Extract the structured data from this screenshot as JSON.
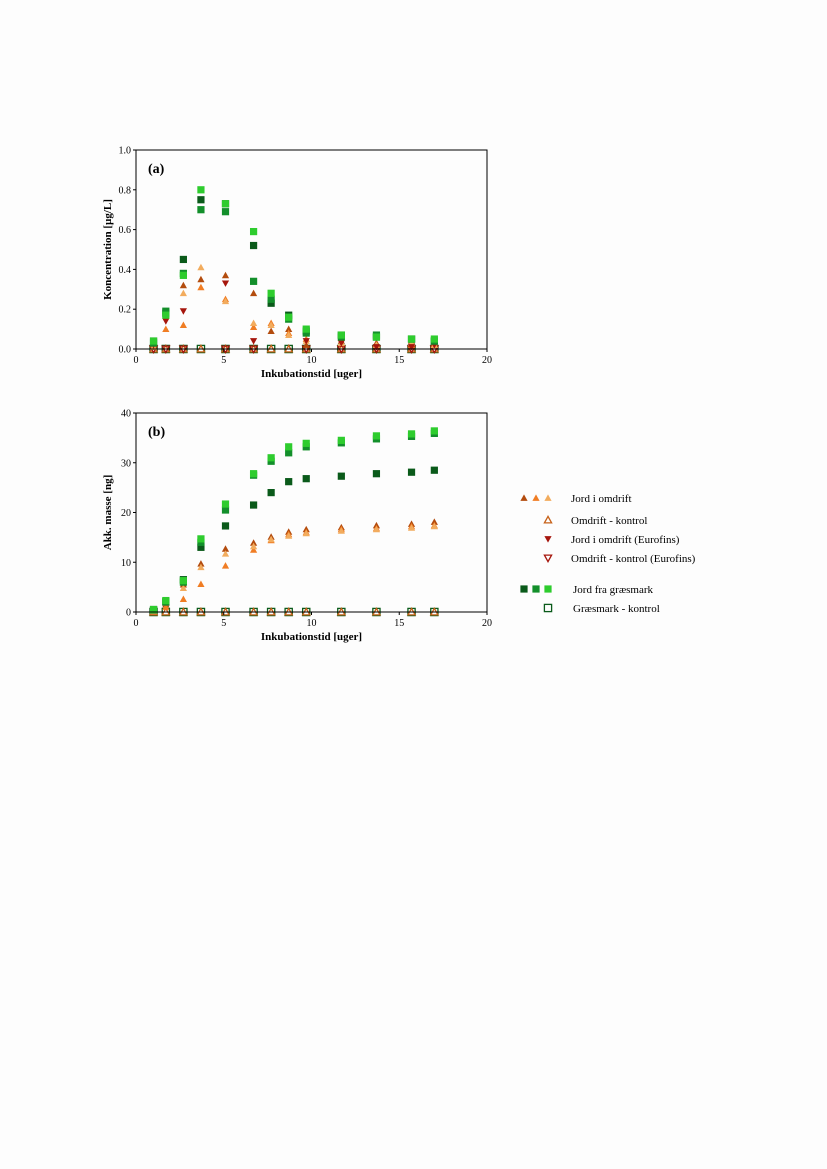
{
  "colors": {
    "tri1": "#b34c0e",
    "tri2": "#f07d24",
    "tri3": "#f2ac5e",
    "ctrl_tri": "#c7621a",
    "eurofins": "#a6160d",
    "sq1": "#0a5a1a",
    "sq2": "#138f2b",
    "sq3": "#2ecc2e",
    "ctrl_sq": "#0a5a1a"
  },
  "legend": {
    "items": [
      {
        "key": "tri",
        "label": "Jord i omdrift"
      },
      {
        "key": "ctrl_tri",
        "label": "Omdrift - kontrol"
      },
      {
        "key": "eurofins",
        "label": "Jord i omdrift (Eurofins)"
      },
      {
        "key": "eurofins_ctrl",
        "label": "Omdrift - kontrol (Eurofins)"
      },
      {
        "key": "sq",
        "label": "Jord fra græsmark"
      },
      {
        "key": "ctrl_sq",
        "label": "Græsmark - kontrol"
      }
    ]
  },
  "chart_data": [
    {
      "type": "scatter",
      "panel_label": "(a)",
      "xlabel": "Inkubationstid [uger]",
      "ylabel": "Koncentration [µg/L]",
      "xlim": [
        0,
        20
      ],
      "ylim": [
        0,
        1.0
      ],
      "xticks": [
        "0",
        "5",
        "10",
        "15",
        "20"
      ],
      "yticks": [
        "0.0",
        "0.2",
        "0.4",
        "0.6",
        "0.8",
        "1.0"
      ],
      "x": [
        1,
        1.7,
        2.7,
        3.7,
        5.1,
        6.7,
        7.7,
        8.7,
        9.7,
        11.7,
        13.7,
        15.7,
        17
      ],
      "series": [
        {
          "group": "tri",
          "name": "Jord i omdrift",
          "values": [
            0.02,
            0.18,
            0.32,
            0.35,
            0.37,
            0.28,
            0.09,
            0.1,
            0.02,
            0.04,
            0.03,
            0.04,
            0.03
          ]
        },
        {
          "group": "tri",
          "name": "Jord i omdrift",
          "values": [
            0.01,
            0.1,
            0.12,
            0.31,
            0.25,
            0.11,
            0.13,
            0.08,
            0.05,
            0.03,
            0.02,
            0.02,
            0.02
          ]
        },
        {
          "group": "tri",
          "name": "Jord i omdrift",
          "values": [
            0.01,
            0.17,
            0.28,
            0.41,
            0.24,
            0.13,
            0.12,
            0.07,
            0.04,
            0.03,
            0.02,
            0.03,
            0.02
          ]
        },
        {
          "group": "ctrl_tri",
          "name": "Omdrift - kontrol",
          "values": [
            0,
            0,
            0,
            0,
            0,
            0,
            0,
            0,
            0,
            0,
            0,
            0,
            0
          ]
        },
        {
          "group": "eurofins",
          "name": "Jord i omdrift (Eurofins)",
          "values": [
            0.02,
            0.14,
            0.19,
            null,
            0.33,
            0.04,
            null,
            null,
            0.04,
            0.03,
            0.01,
            0.01,
            0.02
          ]
        },
        {
          "group": "eurofins_ctrl",
          "name": "Omdrift - kontrol (Eurofins)",
          "values": [
            0,
            0,
            0,
            null,
            0,
            0,
            null,
            null,
            0,
            0,
            0,
            0,
            0
          ]
        },
        {
          "group": "sq",
          "name": "Jord fra græsmark",
          "values": [
            0.04,
            0.18,
            0.45,
            0.75,
            0.73,
            0.52,
            0.23,
            0.17,
            0.09,
            0.07,
            0.06,
            0.05,
            0.04
          ]
        },
        {
          "group": "sq",
          "name": "Jord fra græsmark",
          "values": [
            0.03,
            0.19,
            0.38,
            0.7,
            0.69,
            0.34,
            0.25,
            0.15,
            0.08,
            0.06,
            0.07,
            0.05,
            0.04
          ]
        },
        {
          "group": "sq",
          "name": "Jord fra græsmark",
          "values": [
            0.04,
            0.17,
            0.37,
            0.8,
            0.73,
            0.59,
            0.28,
            0.16,
            0.1,
            0.07,
            0.06,
            0.05,
            0.05
          ]
        },
        {
          "group": "ctrl_sq",
          "name": "Græsmark - kontrol",
          "values": [
            0,
            0,
            0,
            0,
            0,
            0,
            0,
            0,
            0,
            0,
            0,
            0,
            0
          ]
        }
      ]
    },
    {
      "type": "scatter",
      "panel_label": "(b)",
      "xlabel": "Inkubationstid [uger]",
      "ylabel": "Akk. masse [ng]",
      "xlim": [
        0,
        20
      ],
      "ylim": [
        0,
        40
      ],
      "xticks": [
        "0",
        "5",
        "10",
        "15",
        "20"
      ],
      "yticks": [
        "0",
        "10",
        "20",
        "30",
        "40"
      ],
      "x": [
        1,
        1.7,
        2.7,
        3.7,
        5.1,
        6.7,
        7.7,
        8.7,
        9.7,
        11.7,
        13.7,
        15.7,
        17
      ],
      "series": [
        {
          "group": "tri",
          "name": "Jord i omdrift",
          "values": [
            0.3,
            1.5,
            5.5,
            9.7,
            12.7,
            13.9,
            15.1,
            16.1,
            16.6,
            17.0,
            17.4,
            17.7,
            18.1
          ]
        },
        {
          "group": "tri",
          "name": "Jord i omdrift",
          "values": [
            0.1,
            1.0,
            2.6,
            5.6,
            9.3,
            12.5,
            14.4,
            15.6,
            16.0,
            16.6,
            16.8,
            17.2,
            17.4
          ]
        },
        {
          "group": "tri",
          "name": "Jord i omdrift",
          "values": [
            0.2,
            1.8,
            4.8,
            9.0,
            11.7,
            13.2,
            14.6,
            15.3,
            15.8,
            16.3,
            16.6,
            16.9,
            17.2
          ]
        },
        {
          "group": "ctrl_tri",
          "name": "Omdrift - kontrol",
          "values": [
            0,
            0,
            0,
            0,
            0,
            0,
            0,
            0,
            0,
            0,
            0,
            0,
            0
          ]
        },
        {
          "group": "sq",
          "name": "Jord fra græsmark",
          "values": [
            0.5,
            2.0,
            6.5,
            13.0,
            17.3,
            21.5,
            24.0,
            26.2,
            26.8,
            27.3,
            27.8,
            28.1,
            28.5
          ]
        },
        {
          "group": "sq",
          "name": "Jord fra græsmark",
          "values": [
            0.4,
            2.1,
            6.0,
            14.0,
            20.5,
            27.5,
            30.3,
            32.0,
            33.2,
            34.0,
            34.8,
            35.3,
            35.9
          ]
        },
        {
          "group": "sq",
          "name": "Jord fra græsmark",
          "values": [
            0.5,
            2.3,
            6.3,
            14.7,
            21.7,
            27.8,
            31.0,
            33.2,
            33.9,
            34.5,
            35.4,
            35.8,
            36.4
          ]
        },
        {
          "group": "ctrl_sq",
          "name": "Græsmark - kontrol",
          "values": [
            0,
            0,
            0,
            0,
            0,
            0,
            0,
            0,
            0,
            0,
            0,
            0,
            0
          ]
        }
      ]
    }
  ]
}
